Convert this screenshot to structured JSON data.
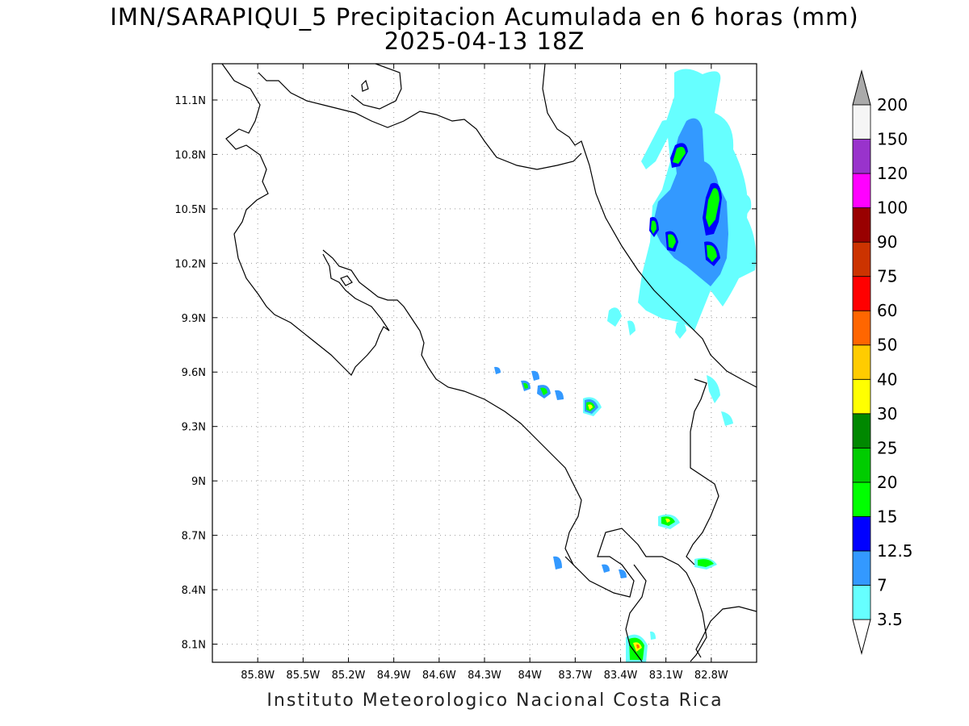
{
  "title_line1": "IMN/SARAPIQUI_5 Precipitacion Acumulada en 6 horas (mm)",
  "title_line2": "2025-04-13 18Z",
  "footer": "Instituto Meteorologico Nacional Costa Rica",
  "map": {
    "lon_range": [
      -86.1,
      -82.5
    ],
    "lat_range": [
      8.0,
      11.3
    ],
    "lon_ticks": [
      {
        "value": -85.8,
        "label": "85.8W"
      },
      {
        "value": -85.5,
        "label": "85.5W"
      },
      {
        "value": -85.2,
        "label": "85.2W"
      },
      {
        "value": -84.9,
        "label": "84.9W"
      },
      {
        "value": -84.6,
        "label": "84.6W"
      },
      {
        "value": -84.3,
        "label": "84.3W"
      },
      {
        "value": -84.0,
        "label": "84W"
      },
      {
        "value": -83.7,
        "label": "83.7W"
      },
      {
        "value": -83.4,
        "label": "83.4W"
      },
      {
        "value": -83.1,
        "label": "83.1W"
      },
      {
        "value": -82.8,
        "label": "82.8W"
      }
    ],
    "lat_ticks": [
      {
        "value": 8.1,
        "label": "8.1N"
      },
      {
        "value": 8.4,
        "label": "8.4N"
      },
      {
        "value": 8.7,
        "label": "8.7N"
      },
      {
        "value": 9.0,
        "label": "9N"
      },
      {
        "value": 9.3,
        "label": "9.3N"
      },
      {
        "value": 9.6,
        "label": "9.6N"
      },
      {
        "value": 9.9,
        "label": "9.9N"
      },
      {
        "value": 10.2,
        "label": "10.2N"
      },
      {
        "value": 10.5,
        "label": "10.5N"
      },
      {
        "value": 10.8,
        "label": "10.8N"
      },
      {
        "value": 11.1,
        "label": "11.1N"
      }
    ],
    "grid": true
  },
  "colorbar": {
    "levels": [
      {
        "label": "3.5",
        "color": "#66ffff"
      },
      {
        "label": "7",
        "color": "#3399ff"
      },
      {
        "label": "12.5",
        "color": "#0000ff"
      },
      {
        "label": "15",
        "color": "#00ff00"
      },
      {
        "label": "20",
        "color": "#00cc00"
      },
      {
        "label": "25",
        "color": "#008800"
      },
      {
        "label": "30",
        "color": "#ffff00"
      },
      {
        "label": "40",
        "color": "#ffcc00"
      },
      {
        "label": "50",
        "color": "#ff6600"
      },
      {
        "label": "60",
        "color": "#ff0000"
      },
      {
        "label": "75",
        "color": "#cc3300"
      },
      {
        "label": "90",
        "color": "#990000"
      },
      {
        "label": "100",
        "color": "#ff00ff"
      },
      {
        "label": "120",
        "color": "#9933cc"
      },
      {
        "label": "150",
        "color": "#f5f5f5"
      },
      {
        "label": "200",
        "color": "#aaaaaa"
      }
    ]
  }
}
